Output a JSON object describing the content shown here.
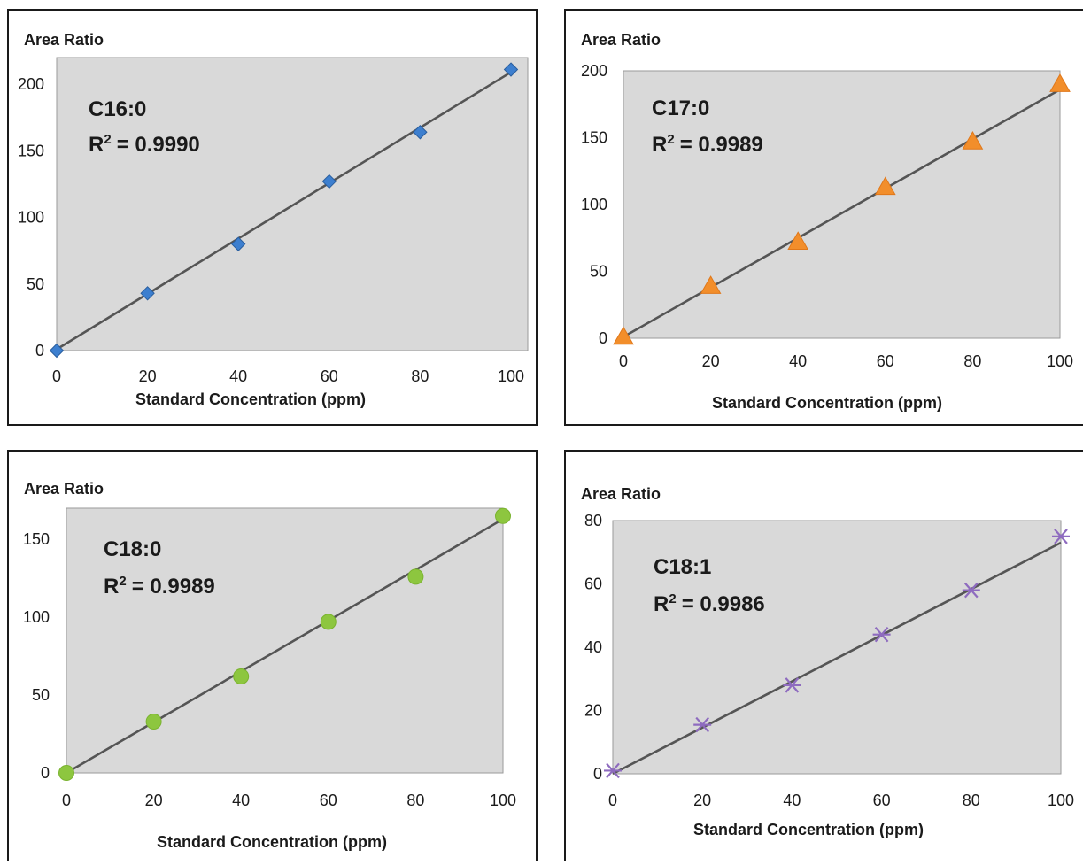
{
  "chart_data": [
    {
      "type": "scatter",
      "annotation": {
        "compound": "C16:0",
        "r2_label": "R",
        "r2_sup": "2",
        "r2_value": "= 0.9990"
      },
      "ylabel": "Area Ratio",
      "xlabel": "Standard Concentration (ppm)",
      "xlim": [
        0,
        100
      ],
      "ylim": [
        0,
        220
      ],
      "xticks": [
        0,
        20,
        40,
        60,
        80,
        100
      ],
      "yticks": [
        0,
        50,
        100,
        150,
        200
      ],
      "series": [
        {
          "x": [
            0,
            20,
            40,
            60,
            80,
            100
          ],
          "y": [
            0,
            43,
            80,
            127,
            164,
            211
          ],
          "marker": "diamond",
          "color": "#3d7fcf"
        }
      ],
      "fit": {
        "x": [
          0,
          100
        ],
        "y": [
          1,
          209
        ]
      }
    },
    {
      "type": "scatter",
      "annotation": {
        "compound": "C17:0",
        "r2_label": "R",
        "r2_sup": "2",
        "r2_value": "= 0.9989"
      },
      "ylabel": "Area Ratio",
      "xlabel": "Standard Concentration (ppm)",
      "xlim": [
        0,
        100
      ],
      "ylim": [
        0,
        200
      ],
      "xticks": [
        0,
        20,
        40,
        60,
        80,
        100
      ],
      "yticks": [
        0,
        50,
        100,
        150,
        200
      ],
      "series": [
        {
          "x": [
            0,
            20,
            40,
            60,
            80,
            100
          ],
          "y": [
            1,
            39,
            72,
            113,
            147,
            190
          ],
          "marker": "triangle",
          "color": "#f28e2b"
        }
      ],
      "fit": {
        "x": [
          0,
          100
        ],
        "y": [
          1,
          186
        ]
      }
    },
    {
      "type": "scatter",
      "annotation": {
        "compound": "C18:0",
        "r2_label": "R",
        "r2_sup": "2",
        "r2_value": "= 0.9989"
      },
      "ylabel": "Area Ratio",
      "xlabel": "Standard Concentration (ppm)",
      "xlim": [
        0,
        100
      ],
      "ylim": [
        0,
        170
      ],
      "xticks": [
        0,
        20,
        40,
        60,
        80,
        100
      ],
      "yticks": [
        0,
        50,
        100,
        150
      ],
      "series": [
        {
          "x": [
            0,
            20,
            40,
            60,
            80,
            100
          ],
          "y": [
            0,
            33,
            62,
            97,
            126,
            165
          ],
          "marker": "circle",
          "color": "#8dc63f"
        }
      ],
      "fit": {
        "x": [
          0,
          100
        ],
        "y": [
          0,
          163
        ]
      }
    },
    {
      "type": "scatter",
      "annotation": {
        "compound": "C18:1",
        "r2_label": "R",
        "r2_sup": "2",
        "r2_value": "= 0.9986"
      },
      "ylabel": "Area Ratio",
      "xlabel": "Standard Concentration (ppm)",
      "xlim": [
        0,
        100
      ],
      "ylim": [
        0,
        80
      ],
      "xticks": [
        0,
        20,
        40,
        60,
        80,
        100
      ],
      "yticks": [
        0,
        20,
        40,
        60,
        80
      ],
      "series": [
        {
          "x": [
            0,
            20,
            40,
            60,
            80,
            100
          ],
          "y": [
            1,
            15.5,
            28,
            44,
            58,
            75
          ],
          "marker": "asterisk",
          "color": "#8e6bbf"
        }
      ],
      "fit": {
        "x": [
          0,
          100
        ],
        "y": [
          0,
          73
        ]
      }
    }
  ]
}
